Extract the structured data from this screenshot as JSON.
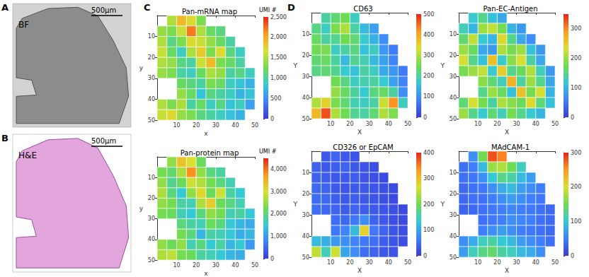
{
  "images": [
    {
      "panel": "A",
      "label": "BF",
      "scale_bar": "500μm"
    },
    {
      "panel": "B",
      "label": "H&E",
      "scale_bar": "500μm"
    }
  ],
  "chart_data": [
    {
      "type": "heatmap",
      "panel": "C",
      "title": "Pan-mRNA map",
      "x_label": "x",
      "y_label": "y",
      "xlim": [
        0,
        50
      ],
      "xticks": [
        10,
        20,
        30,
        40,
        50
      ],
      "ylim": [
        0,
        50
      ],
      "yticks": [
        10,
        20,
        30,
        40,
        50
      ],
      "x": [
        2.5,
        7.5,
        12.5,
        17.5,
        22.5,
        27.5,
        32.5,
        37.5,
        42.5,
        47.5
      ],
      "y": [
        2.5,
        7.5,
        12.5,
        17.5,
        22.5,
        27.5,
        32.5,
        37.5,
        42.5,
        47.5
      ],
      "values": [
        [
          null,
          1500,
          1900,
          1700,
          1300,
          null,
          null,
          null,
          null,
          null
        ],
        [
          1400,
          1300,
          1600,
          2200,
          1500,
          1200,
          1100,
          null,
          null,
          null
        ],
        [
          1500,
          1100,
          1300,
          1700,
          1600,
          1400,
          1200,
          1000,
          null,
          null
        ],
        [
          1600,
          1200,
          900,
          1500,
          1800,
          1300,
          1700,
          1100,
          900,
          null
        ],
        [
          1500,
          1400,
          1100,
          1000,
          1600,
          1900,
          1300,
          1200,
          1000,
          null
        ],
        [
          1400,
          1300,
          1000,
          900,
          1200,
          1500,
          1400,
          1000,
          1100,
          900
        ],
        [
          null,
          null,
          1200,
          1100,
          1000,
          1300,
          1200,
          900,
          800,
          700
        ],
        [
          null,
          null,
          1400,
          1200,
          800,
          1100,
          1000,
          900,
          700,
          800
        ],
        [
          1500,
          1300,
          1500,
          1000,
          1200,
          900,
          1100,
          800,
          900,
          600
        ],
        [
          1600,
          1700,
          1400,
          1300,
          1100,
          1000,
          900,
          800,
          700,
          null
        ]
      ],
      "colorbar_range": [
        0,
        2500
      ],
      "colorbar_ticks": [
        0,
        500,
        1000,
        1500,
        2000,
        2500
      ],
      "colorbar_label": "UMI #"
    },
    {
      "type": "heatmap",
      "title": "Pan-protein map",
      "x_label": "x",
      "y_label": "y",
      "xlim": [
        0,
        50
      ],
      "xticks": [
        10,
        20,
        30,
        40,
        50
      ],
      "ylim": [
        0,
        50
      ],
      "yticks": [
        10,
        20,
        30,
        40,
        50
      ],
      "x": [
        2.5,
        7.5,
        12.5,
        17.5,
        22.5,
        27.5,
        32.5,
        37.5,
        42.5,
        47.5
      ],
      "y": [
        2.5,
        7.5,
        12.5,
        17.5,
        22.5,
        27.5,
        32.5,
        37.5,
        42.5,
        47.5
      ],
      "values": [
        [
          null,
          2500,
          3300,
          3000,
          2200,
          null,
          null,
          null,
          null,
          null
        ],
        [
          2300,
          2100,
          2700,
          3800,
          2500,
          2000,
          1800,
          null,
          null,
          null
        ],
        [
          2500,
          1900,
          2200,
          2900,
          2700,
          2300,
          2000,
          1700,
          null,
          null
        ],
        [
          2700,
          2000,
          1500,
          2500,
          3100,
          2200,
          2900,
          1800,
          1500,
          null
        ],
        [
          2500,
          2300,
          1800,
          1700,
          2700,
          3200,
          2200,
          2000,
          1700,
          null
        ],
        [
          2300,
          2200,
          1700,
          1500,
          2000,
          2500,
          2300,
          1700,
          1800,
          1500
        ],
        [
          null,
          null,
          2000,
          1800,
          1700,
          2200,
          2000,
          1500,
          1300,
          1200
        ],
        [
          null,
          null,
          2300,
          2000,
          1300,
          1800,
          1700,
          1500,
          1200,
          1300
        ],
        [
          2500,
          2200,
          2500,
          1700,
          2000,
          1500,
          1800,
          1300,
          1500,
          1000
        ],
        [
          2700,
          2800,
          2300,
          2200,
          1800,
          1700,
          1500,
          1300,
          1200,
          null
        ]
      ],
      "colorbar_range": [
        0,
        4500
      ],
      "colorbar_ticks": [
        0,
        1000,
        2000,
        3000,
        4000
      ],
      "colorbar_label": "UMI #"
    },
    {
      "type": "heatmap",
      "panel": "D",
      "title": "CD63",
      "x_label": "X",
      "y_label": "Y",
      "xlim": [
        0,
        50
      ],
      "xticks": [
        10,
        20,
        30,
        40,
        50
      ],
      "ylim": [
        0,
        50
      ],
      "yticks": [
        10,
        20,
        30,
        40,
        50
      ],
      "x": [
        2.5,
        7.5,
        12.5,
        17.5,
        22.5,
        27.5,
        32.5,
        37.5,
        42.5,
        47.5
      ],
      "y": [
        2.5,
        7.5,
        12.5,
        17.5,
        22.5,
        27.5,
        32.5,
        37.5,
        42.5,
        47.5
      ],
      "values": [
        [
          null,
          200,
          230,
          250,
          180,
          null,
          null,
          null,
          null,
          null
        ],
        [
          220,
          180,
          260,
          300,
          200,
          150,
          120,
          null,
          null,
          null
        ],
        [
          240,
          200,
          210,
          250,
          230,
          170,
          140,
          100,
          null,
          null
        ],
        [
          250,
          260,
          180,
          200,
          220,
          160,
          180,
          110,
          80,
          null
        ],
        [
          230,
          240,
          200,
          150,
          210,
          190,
          150,
          120,
          90,
          null
        ],
        [
          220,
          230,
          210,
          170,
          160,
          200,
          180,
          130,
          110,
          80
        ],
        [
          null,
          null,
          250,
          220,
          180,
          190,
          200,
          170,
          120,
          90
        ],
        [
          null,
          null,
          280,
          240,
          200,
          170,
          220,
          240,
          200,
          100
        ],
        [
          300,
          350,
          260,
          230,
          190,
          180,
          200,
          320,
          420,
          180
        ],
        [
          380,
          470,
          300,
          250,
          210,
          200,
          230,
          300,
          260,
          null
        ]
      ],
      "colorbar_range": [
        0,
        500
      ],
      "colorbar_ticks": [
        0,
        100,
        200,
        300,
        400,
        500
      ]
    },
    {
      "type": "heatmap",
      "title": "Pan-EC-Antigen",
      "x_label": "X",
      "y_label": "Y",
      "xlim": [
        0,
        50
      ],
      "xticks": [
        10,
        20,
        30,
        40,
        50
      ],
      "ylim": [
        0,
        50
      ],
      "yticks": [
        10,
        20,
        30,
        40,
        50
      ],
      "x": [
        2.5,
        7.5,
        12.5,
        17.5,
        22.5,
        27.5,
        32.5,
        37.5,
        42.5,
        47.5
      ],
      "y": [
        2.5,
        7.5,
        12.5,
        17.5,
        22.5,
        27.5,
        32.5,
        37.5,
        42.5,
        47.5
      ],
      "values": [
        [
          null,
          120,
          150,
          110,
          90,
          null,
          null,
          null,
          null,
          null
        ],
        [
          130,
          100,
          200,
          220,
          180,
          100,
          80,
          null,
          null,
          null
        ],
        [
          160,
          220,
          120,
          100,
          240,
          150,
          90,
          70,
          null,
          null
        ],
        [
          200,
          170,
          90,
          80,
          210,
          180,
          200,
          110,
          80,
          null
        ],
        [
          230,
          150,
          110,
          260,
          120,
          190,
          230,
          140,
          90,
          null
        ],
        [
          180,
          200,
          220,
          120,
          250,
          150,
          170,
          210,
          130,
          80
        ],
        [
          null,
          null,
          190,
          160,
          130,
          270,
          140,
          200,
          150,
          90
        ],
        [
          null,
          null,
          150,
          200,
          170,
          110,
          260,
          180,
          230,
          100
        ],
        [
          160,
          230,
          180,
          140,
          210,
          190,
          170,
          240,
          160,
          110
        ],
        [
          200,
          150,
          120,
          160,
          130,
          180,
          150,
          120,
          100,
          null
        ]
      ],
      "colorbar_range": [
        0,
        350
      ],
      "colorbar_ticks": [
        0,
        100,
        200,
        300
      ]
    },
    {
      "type": "heatmap",
      "title": "CD326 or EpCAM",
      "x_label": "X",
      "y_label": "Y",
      "xlim": [
        0,
        50
      ],
      "xticks": [
        10,
        20,
        30,
        40,
        50
      ],
      "ylim": [
        0,
        50
      ],
      "yticks": [
        10,
        20,
        30,
        40,
        50
      ],
      "x": [
        2.5,
        7.5,
        12.5,
        17.5,
        22.5,
        27.5,
        32.5,
        37.5,
        42.5,
        47.5
      ],
      "y": [
        2.5,
        7.5,
        12.5,
        17.5,
        22.5,
        27.5,
        32.5,
        37.5,
        42.5,
        47.5
      ],
      "values": [
        [
          null,
          30,
          40,
          30,
          25,
          null,
          null,
          null,
          null,
          null
        ],
        [
          40,
          30,
          35,
          40,
          30,
          25,
          20,
          null,
          null,
          null
        ],
        [
          40,
          35,
          30,
          30,
          35,
          25,
          20,
          15,
          null,
          null
        ],
        [
          45,
          40,
          30,
          25,
          30,
          30,
          25,
          20,
          15,
          null
        ],
        [
          50,
          45,
          35,
          30,
          35,
          30,
          25,
          20,
          15,
          null
        ],
        [
          50,
          45,
          40,
          35,
          40,
          35,
          30,
          25,
          20,
          15
        ],
        [
          null,
          null,
          50,
          45,
          60,
          80,
          40,
          30,
          20,
          15
        ],
        [
          null,
          null,
          60,
          70,
          120,
          280,
          60,
          40,
          25,
          20
        ],
        [
          120,
          110,
          90,
          80,
          70,
          60,
          50,
          35,
          25,
          20
        ],
        [
          250,
          150,
          260,
          100,
          80,
          50,
          40,
          30,
          25,
          null
        ]
      ],
      "colorbar_range": [
        0,
        400
      ],
      "colorbar_ticks": [
        0,
        100,
        200,
        300,
        400
      ]
    },
    {
      "type": "heatmap",
      "title": "MAdCAM-1",
      "x_label": "X",
      "y_label": "Y",
      "xlim": [
        0,
        50
      ],
      "xticks": [
        10,
        20,
        30,
        40,
        50
      ],
      "ylim": [
        0,
        50
      ],
      "yticks": [
        10,
        20,
        30,
        40,
        50
      ],
      "x": [
        2.5,
        7.5,
        12.5,
        17.5,
        22.5,
        27.5,
        32.5,
        37.5,
        42.5,
        47.5
      ],
      "y": [
        2.5,
        7.5,
        12.5,
        17.5,
        22.5,
        27.5,
        32.5,
        37.5,
        42.5,
        47.5
      ],
      "values": [
        [
          null,
          60,
          150,
          280,
          260,
          null,
          null,
          null,
          null,
          null
        ],
        [
          40,
          50,
          90,
          170,
          180,
          150,
          110,
          null,
          null,
          null
        ],
        [
          40,
          45,
          60,
          100,
          130,
          120,
          90,
          70,
          null,
          null
        ],
        [
          35,
          40,
          45,
          60,
          80,
          90,
          70,
          60,
          50,
          null
        ],
        [
          35,
          40,
          40,
          50,
          60,
          70,
          60,
          50,
          45,
          null
        ],
        [
          30,
          35,
          40,
          45,
          50,
          55,
          50,
          45,
          40,
          35
        ],
        [
          null,
          null,
          40,
          45,
          50,
          60,
          55,
          50,
          40,
          35
        ],
        [
          null,
          null,
          50,
          60,
          70,
          60,
          50,
          45,
          40,
          35
        ],
        [
          60,
          80,
          110,
          120,
          100,
          90,
          70,
          60,
          50,
          40
        ],
        [
          70,
          110,
          130,
          140,
          120,
          110,
          90,
          80,
          60,
          null
        ]
      ],
      "colorbar_range": [
        0,
        300
      ],
      "colorbar_ticks": [
        0,
        100,
        200,
        300
      ]
    }
  ]
}
